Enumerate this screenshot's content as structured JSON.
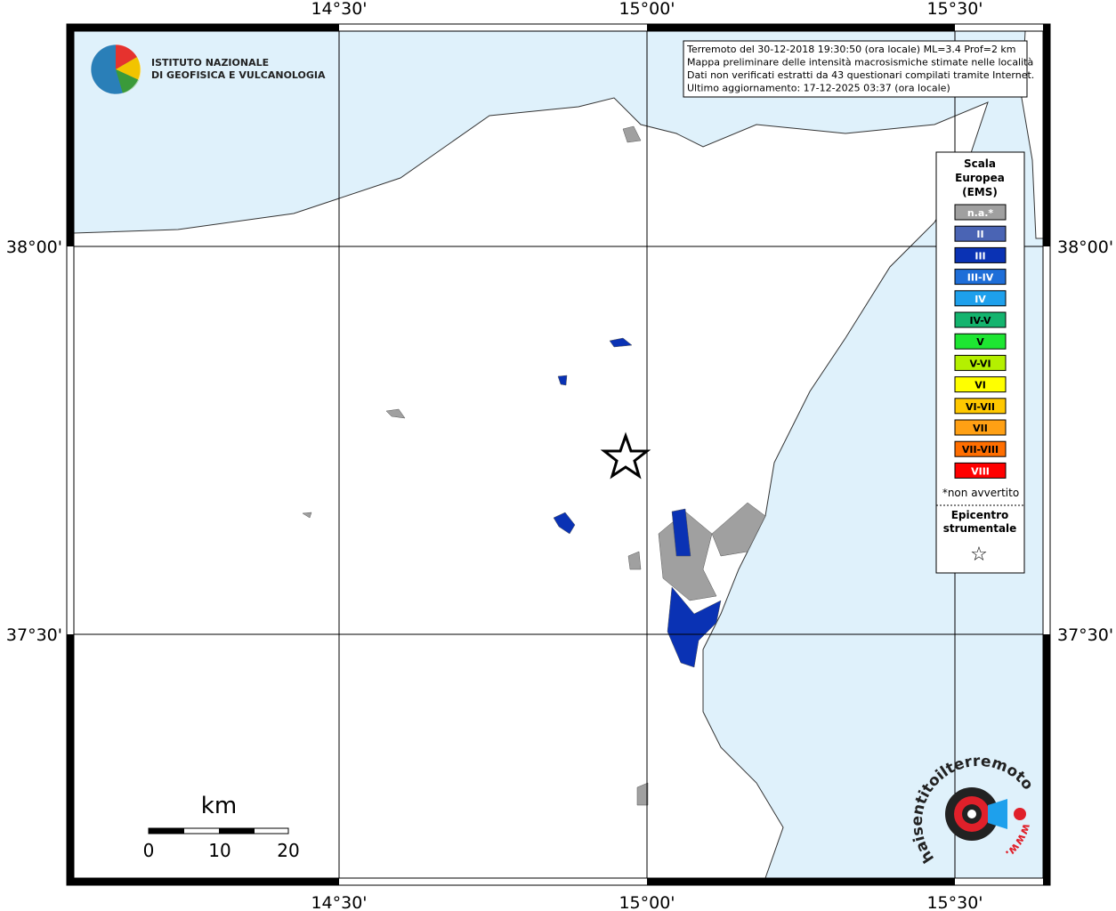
{
  "frame": {
    "top_labels": [
      "14°30'",
      "15°00'",
      "15°30'"
    ],
    "bottom_labels": [
      "14°30'",
      "15°00'",
      "15°30'"
    ],
    "left_labels": [
      "38°00'",
      "37°30'"
    ],
    "right_labels": [
      "38°00'",
      "37°30'"
    ]
  },
  "logo": {
    "line1": "ISTITUTO NAZIONALE",
    "line2": "DI GEOFISICA E VULCANOLOGIA"
  },
  "info": [
    "Terremoto del 30-12-2018 19:30:50 (ora locale) ML=3.4 Prof=2 km",
    "Mappa preliminare delle intensità macrosismiche stimate nelle località",
    "Dati non verificati estratti da 43 questionari compilati tramite Internet.",
    "Ultimo aggiornamento: 17-12-2025 03:37 (ora locale)"
  ],
  "legend": {
    "title": [
      "Scala",
      "Europea",
      "(EMS)"
    ],
    "items": [
      {
        "label": "n.a.*",
        "color": "#a0a0a0",
        "text_color": "#ffffff"
      },
      {
        "label": "II",
        "color": "#4a64b4",
        "text_color": "#ffffff"
      },
      {
        "label": "III",
        "color": "#0a32b4",
        "text_color": "#ffffff"
      },
      {
        "label": "III-IV",
        "color": "#1e6ed8",
        "text_color": "#ffffff"
      },
      {
        "label": "IV",
        "color": "#1ea0ec",
        "text_color": "#ffffff"
      },
      {
        "label": "IV-V",
        "color": "#14b46e",
        "text_color": "#000000"
      },
      {
        "label": "V",
        "color": "#1ee632",
        "text_color": "#000000"
      },
      {
        "label": "V-VI",
        "color": "#b4f000",
        "text_color": "#000000"
      },
      {
        "label": "VI",
        "color": "#ffff00",
        "text_color": "#000000"
      },
      {
        "label": "VI-VII",
        "color": "#ffc800",
        "text_color": "#000000"
      },
      {
        "label": "VII",
        "color": "#ffa014",
        "text_color": "#000000"
      },
      {
        "label": "VII-VIII",
        "color": "#ff6e00",
        "text_color": "#000000"
      },
      {
        "label": "VIII",
        "color": "#ff0000",
        "text_color": "#ffffff"
      }
    ],
    "note": "*non avvertito",
    "epicenter": [
      "Epicentro",
      "strumentale"
    ],
    "epicenter_symbol": "☆"
  },
  "scale_bar": {
    "unit": "km",
    "labels": [
      "0",
      "10",
      "20"
    ]
  },
  "watermark": {
    "text": "haisentitoilterremoto.it",
    "www": "www."
  }
}
